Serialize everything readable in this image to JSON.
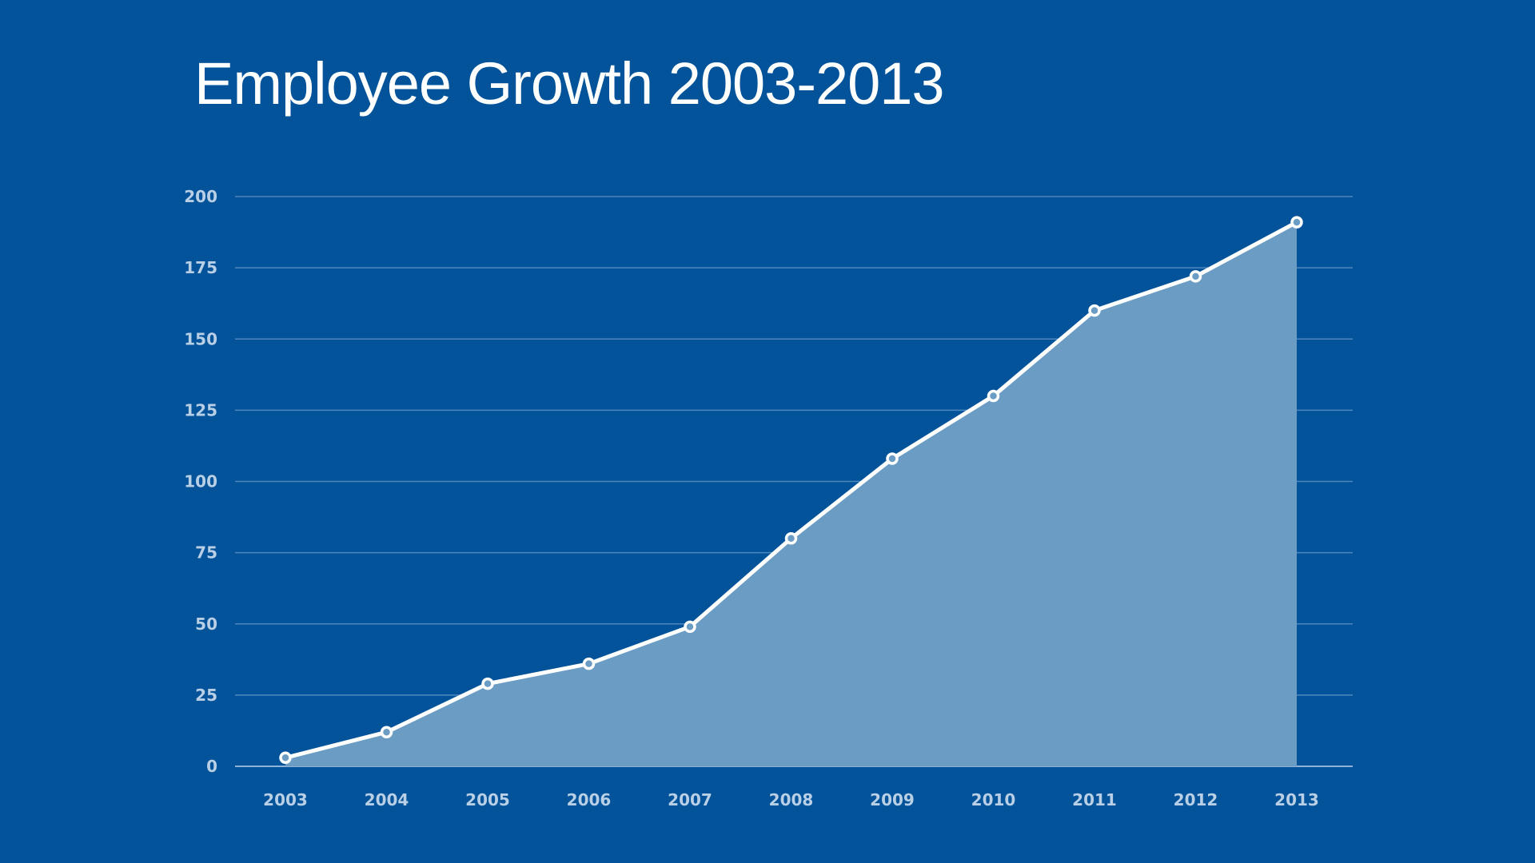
{
  "chart_data": {
    "type": "area",
    "title": "Employee Growth 2003-2013",
    "xlabel": "",
    "ylabel": "",
    "categories": [
      "2003",
      "2004",
      "2005",
      "2006",
      "2007",
      "2008",
      "2009",
      "2010",
      "2011",
      "2012",
      "2013"
    ],
    "values": [
      3,
      12,
      29,
      36,
      49,
      80,
      108,
      130,
      160,
      172,
      191
    ],
    "ylim": [
      0,
      200
    ],
    "yticks": [
      0,
      25,
      50,
      75,
      100,
      125,
      150,
      175,
      200
    ],
    "grid": true,
    "legend": "none",
    "colors": {
      "background": "#02539a",
      "fill": "#6a9cc4",
      "line": "#ffffff",
      "grid": "#4f86bd",
      "tick_text": "#b9cfe6"
    }
  }
}
